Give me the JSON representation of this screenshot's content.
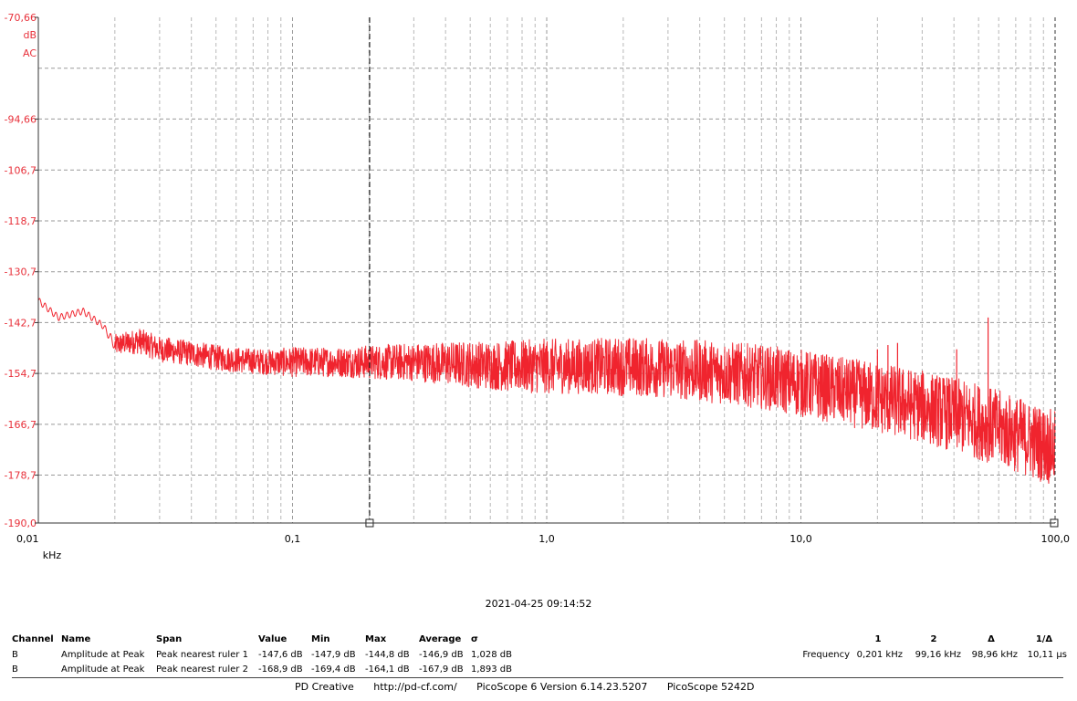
{
  "chart_data": {
    "type": "line",
    "scale_x": "log",
    "xlim": [
      0.01,
      100.0
    ],
    "ylim": [
      -190.0,
      -70.66
    ],
    "x_ticks": [
      "0,01",
      "0,1",
      "1,0",
      "10,0",
      "100,0"
    ],
    "x_tick_values": [
      0.01,
      0.1,
      1.0,
      10.0,
      100.0
    ],
    "y_ticks": [
      "-70,66",
      "-94,66",
      "-106,7",
      "-118,7",
      "-130,7",
      "-142,7",
      "-154,7",
      "-166,7",
      "-178,7",
      "-190,0"
    ],
    "y_tick_values": [
      -70.66,
      -94.66,
      -106.7,
      -118.7,
      -130.7,
      -142.7,
      -154.7,
      -166.7,
      -178.7,
      -190.0
    ],
    "y_unit_labels": [
      "dB",
      "AC"
    ],
    "xlabel": "kHz",
    "grid": true,
    "series_color": "#f0242e",
    "series": [
      {
        "x": [
          0.01,
          0.012,
          0.015,
          0.018,
          0.02,
          0.025,
          0.03,
          0.035,
          0.04,
          0.05,
          0.06,
          0.08,
          0.1,
          0.15,
          0.2,
          0.3,
          0.5,
          0.7,
          1.0,
          1.5,
          2.0,
          3.0,
          5.0,
          7.0,
          10.0,
          15.0,
          20.0,
          30.0,
          50.0,
          70.0,
          100.0
        ],
        "y": [
          -137.5,
          -141.5,
          -140.0,
          -143.5,
          -148.0,
          -147.0,
          -149.0,
          -149.5,
          -150.0,
          -151.0,
          -151.5,
          -152.0,
          -152.0,
          -152.0,
          -152.0,
          -152.0,
          -152.5,
          -153.0,
          -153.0,
          -153.0,
          -153.0,
          -153.5,
          -154.5,
          -155.5,
          -157.0,
          -159.0,
          -160.5,
          -162.5,
          -166.0,
          -169.0,
          -172.5
        ],
        "noise": [
          1.5,
          1.5,
          1.5,
          1.5,
          2.5,
          3.0,
          3.0,
          3.0,
          3.0,
          3.0,
          3.0,
          3.0,
          3.5,
          3.5,
          4.0,
          4.5,
          5.5,
          6.0,
          6.5,
          6.5,
          7.0,
          7.0,
          7.5,
          7.5,
          8.0,
          8.0,
          8.5,
          8.5,
          9.0,
          9.0,
          9.0
        ]
      }
    ],
    "spikes": [
      {
        "x": 20.0,
        "y": -149.0
      },
      {
        "x": 22.0,
        "y": -148.0
      },
      {
        "x": 24.0,
        "y": -147.5
      },
      {
        "x": 41.0,
        "y": -149.0
      },
      {
        "x": 54.5,
        "y": -141.5
      }
    ],
    "rulers": [
      {
        "x": 0.201,
        "label": "1"
      },
      {
        "x": 99.16,
        "label": "2"
      }
    ]
  },
  "timestamp": "2021-04-25 09:14:52",
  "measurements": {
    "headers": [
      "Channel",
      "Name",
      "Span",
      "Value",
      "Min",
      "Max",
      "Average",
      "σ"
    ],
    "rows": [
      [
        "B",
        "Amplitude at Peak",
        "Peak nearest ruler 1",
        "-147,6 dB",
        "-147,9 dB",
        "-144,8 dB",
        "-146,9 dB",
        "1,028 dB"
      ],
      [
        "B",
        "Amplitude at Peak",
        "Peak nearest ruler 2",
        "-168,9 dB",
        "-169,4 dB",
        "-164,1 dB",
        "-167,9 dB",
        "1,893 dB"
      ]
    ]
  },
  "rulers_table": {
    "headers": [
      "",
      "1",
      "2",
      "Δ",
      "1/Δ"
    ],
    "row_label": "Frequency",
    "values": [
      "0,201 kHz",
      "99,16 kHz",
      "98,96 kHz",
      "10,11 µs"
    ]
  },
  "footer": {
    "company": "PD Creative",
    "url": "http://pd-cf.com/",
    "software": "PicoScope 6 Version 6.14.23.5207",
    "device": "PicoScope 5242D"
  }
}
